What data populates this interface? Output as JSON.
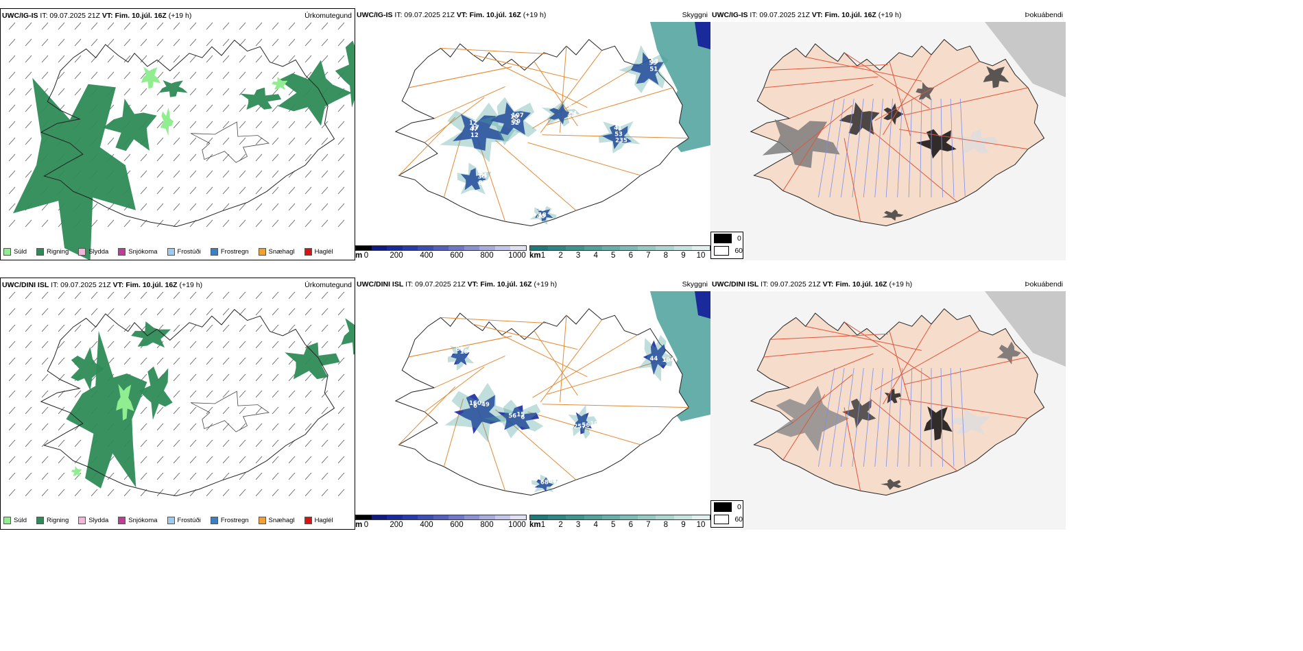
{
  "rows": [
    {
      "precip": {
        "header_model": "UWC/IG-IS",
        "header_rest_1": " IT: 09.07.2025 21Z ",
        "header_bold": "VT: Fim. 10.júl. 16Z",
        "header_rest_2": " (+19 h)",
        "title": "Úrkomutegund"
      },
      "cloud": {
        "header_model": "UWC/IG-IS",
        "header_rest_1": " IT: 09.07.2025 21Z ",
        "header_bold": "VT: Fim. 10.júl. 16Z",
        "header_rest_2": " (+19 h)",
        "title": "Skyggni",
        "labels": [
          "12",
          "10",
          "42",
          "41",
          "36",
          "40",
          "59",
          "47",
          "52",
          "54",
          "53",
          "83",
          "50",
          "51",
          "12",
          "107",
          "84",
          "235",
          "84",
          "18",
          "13",
          "17",
          "20"
        ]
      },
      "fog": {
        "header_model": "UWC/IG-IS",
        "header_rest_1": " IT: 09.07.2025 21Z ",
        "header_bold": "VT: Fim. 10.júl. 16Z",
        "header_rest_2": " (+19 h)",
        "title": "Þokuábendi"
      }
    },
    {
      "precip": {
        "header_model": "UWC/DINI ISL",
        "header_rest_1": " IT: 09.07.2025 21Z ",
        "header_bold": "VT: Fim. 10.júl. 16Z",
        "header_rest_2": " (+19 h)",
        "title": "Úrkomutegund"
      },
      "cloud": {
        "header_model": "UWC/DINI ISL",
        "header_rest_1": " IT: 09.07.2025 21Z ",
        "header_bold": "VT: Fim. 10.júl. 16Z",
        "header_rest_2": " (+19 h)",
        "title": "Skyggni",
        "labels": [
          "160",
          "15",
          "100",
          "85",
          "68",
          "44",
          "49",
          "56",
          "56",
          "72",
          "68",
          "104",
          "6",
          "6",
          "257",
          "18",
          "18"
        ]
      },
      "fog": {
        "header_model": "UWC/DINI ISL",
        "header_rest_1": " IT: 09.07.2025 21Z ",
        "header_bold": "VT: Fim. 10.júl. 16Z",
        "header_rest_2": " (+19 h)",
        "title": "Þokuábendi"
      }
    }
  ],
  "precip_legend": [
    {
      "label": "Súld",
      "color": "#90ee90"
    },
    {
      "label": "Rigning",
      "color": "#2e8b57"
    },
    {
      "label": "Slydda",
      "color": "#f4b6d8"
    },
    {
      "label": "Snjókoma",
      "color": "#c23b9b"
    },
    {
      "label": "Frostúði",
      "color": "#9ccbf0"
    },
    {
      "label": "Frostregn",
      "color": "#3b7fc4"
    },
    {
      "label": "Snæhagl",
      "color": "#f2a030"
    },
    {
      "label": "Haglél",
      "color": "#e01010"
    }
  ],
  "ceiling_scale": {
    "unit": "m",
    "ticks": [
      "0",
      "200",
      "400",
      "600",
      "800",
      "1000"
    ],
    "colors": [
      "#000000",
      "#111a80",
      "#1a2a9a",
      "#2a3aa8",
      "#3d4db2",
      "#5560bc",
      "#6f78c6",
      "#8b92d0",
      "#a7acdb",
      "#c3c6e6",
      "#dfe0f2"
    ]
  },
  "visibility_scale": {
    "unit": "km",
    "ticks": [
      "1",
      "2",
      "3",
      "4",
      "5",
      "6",
      "7",
      "8",
      "9",
      "10"
    ],
    "colors": [
      "#1f7a78",
      "#2f8784",
      "#3f9490",
      "#53a19c",
      "#68aea9",
      "#7fbbb6",
      "#97c8c3",
      "#afd5d1",
      "#c7e2df",
      "#e0f0ee"
    ]
  },
  "fog_legend": [
    {
      "label": "0",
      "color": "#000000"
    },
    {
      "label": "60",
      "color": "#ffffff"
    }
  ]
}
